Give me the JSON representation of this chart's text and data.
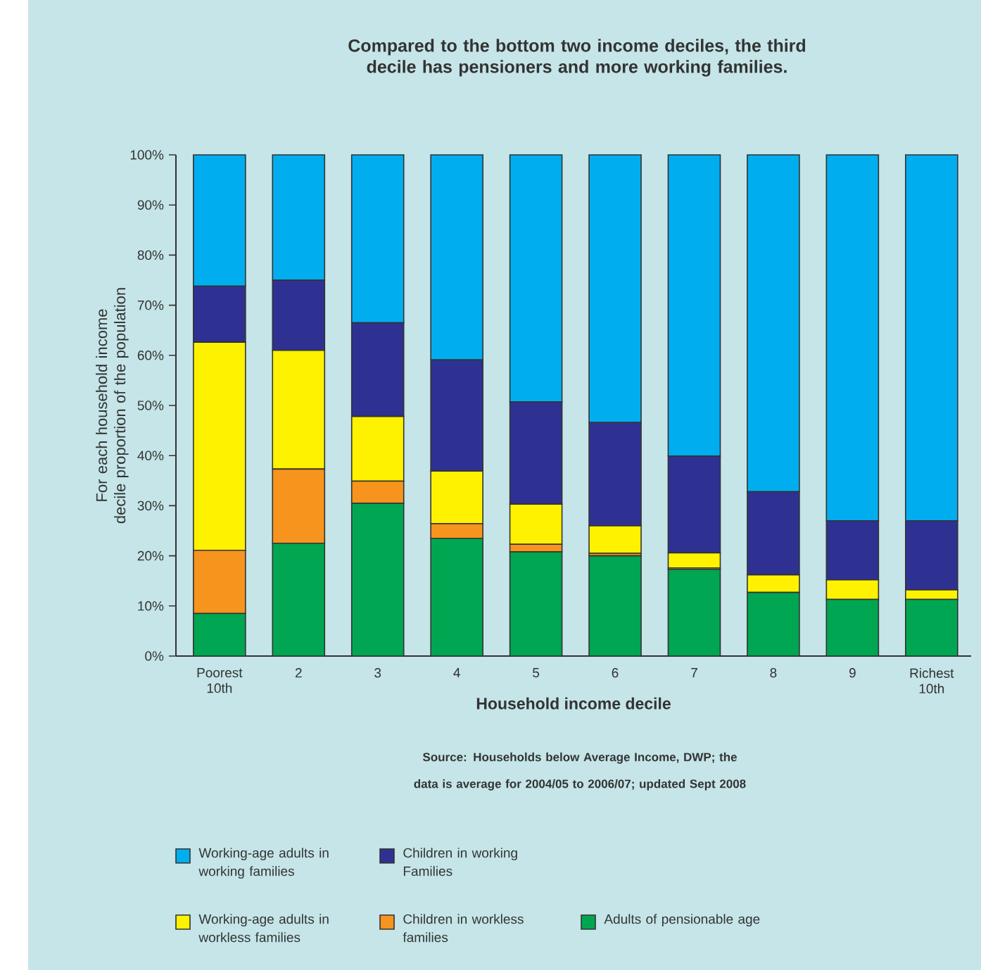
{
  "chart_data": {
    "type": "bar",
    "stacked": true,
    "title": "Compared to the bottom two income deciles, the third decile has pensioners and more working families.",
    "xlabel": "Household income decile",
    "ylabel": "For each household income decile proportion of the population",
    "annotations": [
      "Source: Households below Average Income, DWP; the data is average for 2004/05 to 2006/07; updated Sept 2008"
    ],
    "categories": [
      "Poorest 10th",
      "2",
      "3",
      "4",
      "5",
      "6",
      "7",
      "8",
      "9",
      "Richest 10th"
    ],
    "ylim": [
      0,
      100
    ],
    "yticks": [
      {
        "value": 0,
        "label": "0%"
      },
      {
        "value": 10,
        "label": "10%"
      },
      {
        "value": 20,
        "label": "20%"
      },
      {
        "value": 30,
        "label": "30%"
      },
      {
        "value": 40,
        "label": "40%"
      },
      {
        "value": 50,
        "label": "50%"
      },
      {
        "value": 60,
        "label": "60%"
      },
      {
        "value": 70,
        "label": "70%"
      },
      {
        "value": 80,
        "label": "80%"
      },
      {
        "value": 90,
        "label": "90%"
      },
      {
        "value": 100,
        "label": "100%"
      }
    ],
    "legend": "bottom",
    "series": [
      {
        "name": "Adults of pensionable age",
        "color": "#00a651",
        "values": [
          8.5,
          22.5,
          30.5,
          23.5,
          20.8,
          20.0,
          17.3,
          12.7,
          11.3,
          11.3
        ]
      },
      {
        "name": "Children in workless families",
        "color": "#f7941d",
        "values": [
          12.6,
          14.8,
          4.4,
          2.9,
          1.5,
          0.5,
          0.3,
          0,
          0,
          0
        ]
      },
      {
        "name": "Working-age adults in workless families",
        "color": "#fff200",
        "values": [
          41.5,
          23.7,
          12.9,
          10.5,
          8.0,
          5.5,
          3.0,
          3.5,
          3.9,
          1.9
        ]
      },
      {
        "name": "Children in working Families",
        "color": "#2e3192",
        "values": [
          11.2,
          14.0,
          18.7,
          22.2,
          20.4,
          20.6,
          19.3,
          16.6,
          11.8,
          13.8
        ]
      },
      {
        "name": "Working-age adults in working families",
        "color": "#00aeef",
        "values": [
          26.2,
          25.0,
          33.5,
          40.9,
          49.3,
          53.4,
          60.1,
          67.2,
          73.0,
          73.0
        ]
      }
    ]
  }
}
